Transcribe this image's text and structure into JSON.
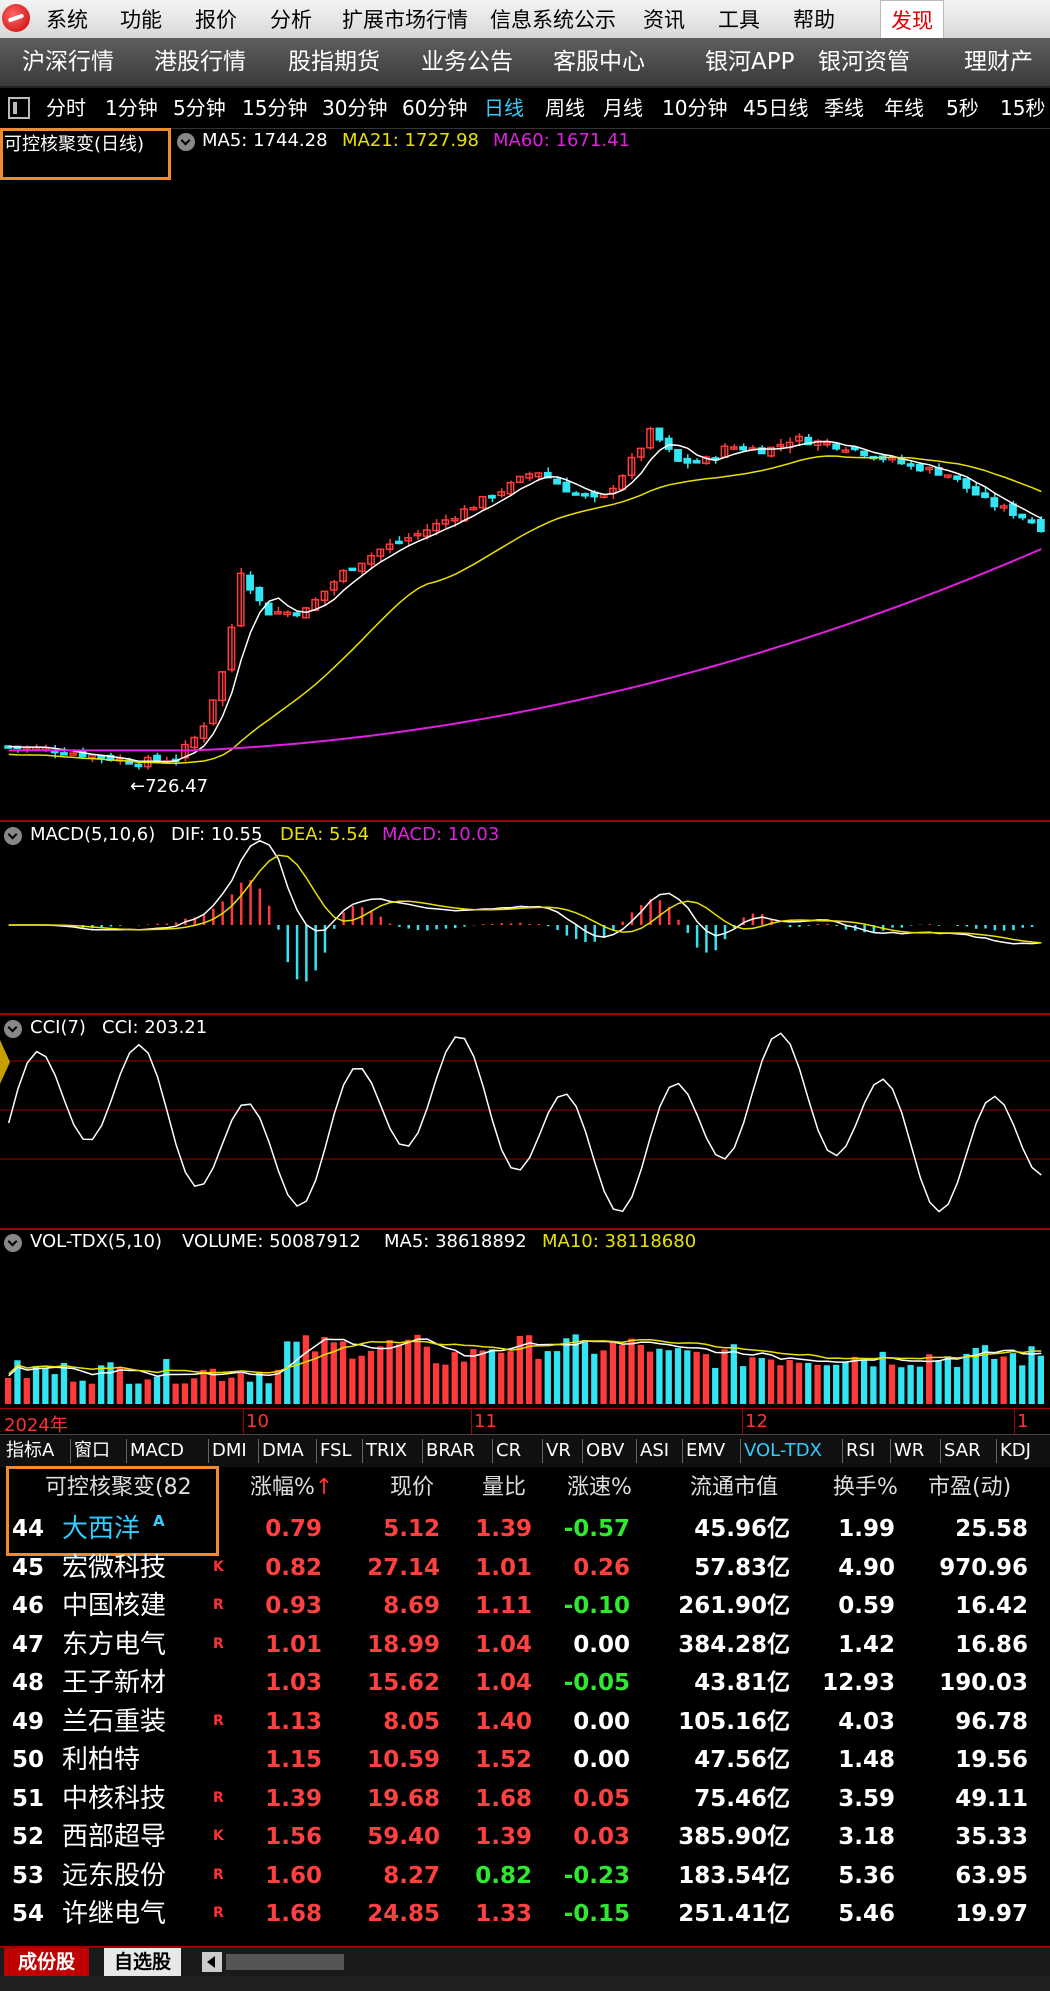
{
  "menu": {
    "items": [
      "系统",
      "功能",
      "报价",
      "分析",
      "扩展市场行情",
      "信息系统公示",
      "资讯",
      "工具",
      "帮助"
    ],
    "discover": "发现"
  },
  "nav": {
    "items": [
      "沪深行情",
      "港股行情",
      "股指期货",
      "业务公告",
      "客服中心",
      "银河APP",
      "银河资管",
      "理财产品"
    ]
  },
  "periods": {
    "items": [
      "分时",
      "1分钟",
      "5分钟",
      "15分钟",
      "30分钟",
      "60分钟",
      "日线",
      "周线",
      "月线",
      "10分钟",
      "45日线",
      "季线",
      "年线",
      "5秒",
      "15秒"
    ],
    "active": "日线"
  },
  "main_chart": {
    "title": "可控核聚变(日线)",
    "ma5_label": "MA5: 1744.28",
    "ma21_label": "MA21: 1727.98",
    "ma60_label": "MA60: 1671.41",
    "low_label": "←726.47"
  },
  "macd_panel": {
    "title": "MACD(5,10,6)",
    "dif_label": "DIF: 10.55",
    "dea_label": "DEA: 5.54",
    "macd_label": "MACD: 10.03"
  },
  "cci_panel": {
    "title": "CCI(7)",
    "cci_label": "CCI: 203.21"
  },
  "vol_panel": {
    "title": "VOL-TDX(5,10)",
    "volume_label": "VOLUME: 50087912",
    "ma5_label": "MA5: 38618892",
    "ma10_label": "MA10: 38118680"
  },
  "time_axis": {
    "year": "2024年",
    "m10": "10",
    "m11": "11",
    "m12": "12",
    "m1": "1"
  },
  "indicator_tabs": {
    "items": [
      "指标A",
      "窗口",
      "MACD",
      "DMI",
      "DMA",
      "FSL",
      "TRIX",
      "BRAR",
      "CR",
      "VR",
      "OBV",
      "ASI",
      "EMV",
      "VOL-TDX",
      "RSI",
      "WR",
      "SAR",
      "KDJ"
    ],
    "active": "VOL-TDX"
  },
  "table": {
    "headers": {
      "name": "可控核聚变(82",
      "change": "涨幅%",
      "change_arrow": "↑",
      "price": "现价",
      "vol_ratio": "量比",
      "speed": "涨速%",
      "float_cap": "流通市值",
      "turnover": "换手%",
      "pe": "市盈(动)"
    },
    "rows": [
      {
        "idx": "44",
        "name": "大西洋",
        "mark": "A",
        "change": "0.79",
        "price": "5.12",
        "vol_ratio": "1.39",
        "speed": "-0.57",
        "float_cap": "45.96亿",
        "turnover": "1.99",
        "pe": "25.58"
      },
      {
        "idx": "45",
        "name": "宏微科技",
        "mark": "K",
        "change": "0.82",
        "price": "27.14",
        "vol_ratio": "1.01",
        "speed": "0.26",
        "float_cap": "57.83亿",
        "turnover": "4.90",
        "pe": "970.96"
      },
      {
        "idx": "46",
        "name": "中国核建",
        "mark": "R",
        "change": "0.93",
        "price": "8.69",
        "vol_ratio": "1.11",
        "speed": "-0.10",
        "float_cap": "261.90亿",
        "turnover": "0.59",
        "pe": "16.42"
      },
      {
        "idx": "47",
        "name": "东方电气",
        "mark": "R",
        "change": "1.01",
        "price": "18.99",
        "vol_ratio": "1.04",
        "speed": "0.00",
        "float_cap": "384.28亿",
        "turnover": "1.42",
        "pe": "16.86"
      },
      {
        "idx": "48",
        "name": "王子新材",
        "mark": "",
        "change": "1.03",
        "price": "15.62",
        "vol_ratio": "1.04",
        "speed": "-0.05",
        "float_cap": "43.81亿",
        "turnover": "12.93",
        "pe": "190.03"
      },
      {
        "idx": "49",
        "name": "兰石重装",
        "mark": "R",
        "change": "1.13",
        "price": "8.05",
        "vol_ratio": "1.40",
        "speed": "0.00",
        "float_cap": "105.16亿",
        "turnover": "4.03",
        "pe": "96.78"
      },
      {
        "idx": "50",
        "name": "利柏特",
        "mark": "",
        "change": "1.15",
        "price": "10.59",
        "vol_ratio": "1.52",
        "speed": "0.00",
        "float_cap": "47.56亿",
        "turnover": "1.48",
        "pe": "19.56"
      },
      {
        "idx": "51",
        "name": "中核科技",
        "mark": "R",
        "change": "1.39",
        "price": "19.68",
        "vol_ratio": "1.68",
        "speed": "0.05",
        "float_cap": "75.46亿",
        "turnover": "3.59",
        "pe": "49.11"
      },
      {
        "idx": "52",
        "name": "西部超导",
        "mark": "K",
        "change": "1.56",
        "price": "59.40",
        "vol_ratio": "1.39",
        "speed": "0.03",
        "float_cap": "385.90亿",
        "turnover": "3.18",
        "pe": "35.33"
      },
      {
        "idx": "53",
        "name": "远东股份",
        "mark": "R",
        "change": "1.60",
        "price": "8.27",
        "vol_ratio": "0.82",
        "speed": "-0.23",
        "float_cap": "183.54亿",
        "turnover": "5.36",
        "pe": "63.95"
      },
      {
        "idx": "54",
        "name": "许继电气",
        "mark": "R",
        "change": "1.68",
        "price": "24.85",
        "vol_ratio": "1.33",
        "speed": "-0.15",
        "float_cap": "251.41亿",
        "turnover": "5.46",
        "pe": "19.97"
      }
    ]
  },
  "bottom_tabs": {
    "constituents": "成份股",
    "watchlist": "自选股"
  },
  "colors": {
    "up": "#ff3a3a",
    "down": "#33e5f2",
    "ma5": "#ffffff",
    "ma21": "#e8e000",
    "ma60": "#e020e0",
    "accent_active": "#33ccff",
    "highlight_box": "#f08a2a"
  }
}
